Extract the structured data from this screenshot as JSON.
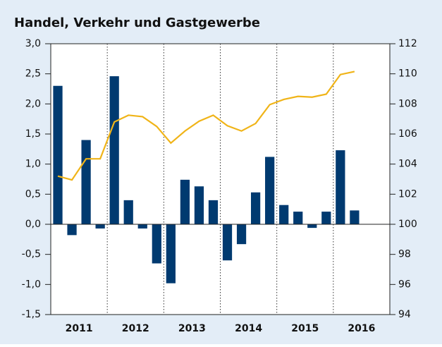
{
  "chart_data": {
    "type": "bar_line",
    "title": "Handel, Verkehr und Gastgewerbe",
    "years": [
      "2011",
      "2012",
      "2013",
      "2014",
      "2015",
      "2016"
    ],
    "series": [
      {
        "name": null,
        "type": "bar",
        "color": "#003a70",
        "axis": "y",
        "values": [
          2.3,
          -0.18,
          1.4,
          -0.07,
          2.46,
          0.4,
          -0.07,
          -0.65,
          -0.98,
          0.74,
          0.63,
          0.4,
          -0.6,
          -0.33,
          0.53,
          1.12,
          0.32,
          0.21,
          -0.06,
          0.21,
          1.23,
          0.23
        ]
      },
      {
        "name": null,
        "type": "line",
        "color": "#f0b418",
        "axis": "y2",
        "values": [
          103.2,
          102.95,
          104.35,
          104.35,
          106.8,
          107.25,
          107.15,
          106.5,
          105.4,
          106.2,
          106.85,
          107.25,
          106.55,
          106.2,
          106.7,
          107.95,
          108.3,
          108.5,
          108.45,
          108.65,
          109.95,
          110.15
        ]
      }
    ],
    "ylim": [
      -1.5,
      3.0
    ],
    "yticks": [
      {
        "value": -1.5,
        "label": "-1,5"
      },
      {
        "value": -1.0,
        "label": "-1,0"
      },
      {
        "value": -0.5,
        "label": "-0,5"
      },
      {
        "value": 0,
        "label": "0,0"
      },
      {
        "value": 0.5,
        "label": "0,5"
      },
      {
        "value": 1.0,
        "label": "1,0"
      },
      {
        "value": 1.5,
        "label": "1,5"
      },
      {
        "value": 2.0,
        "label": "2,0"
      },
      {
        "value": 2.5,
        "label": "2,5"
      },
      {
        "value": 3.0,
        "label": "3,0"
      }
    ],
    "y2lim": [
      94,
      112
    ],
    "y2ticks": [
      94,
      96,
      98,
      100,
      102,
      104,
      106,
      108,
      110,
      112
    ]
  }
}
